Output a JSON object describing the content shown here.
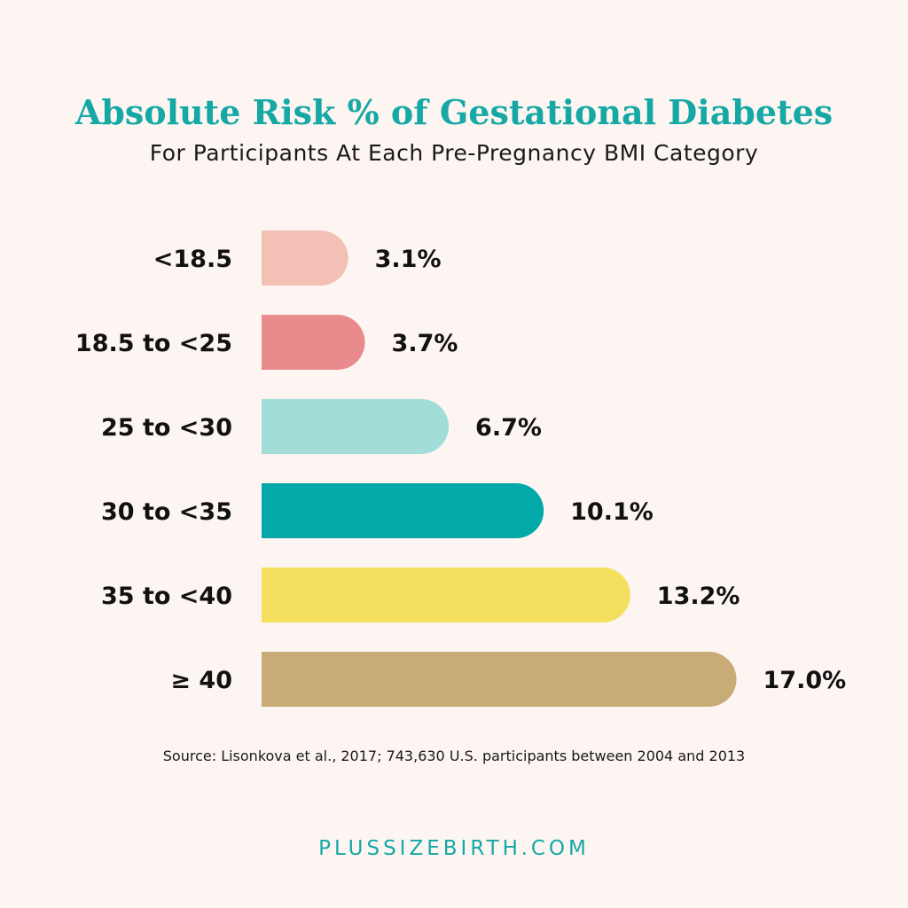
{
  "header": {
    "title": "Absolute Risk % of Gestational Diabetes",
    "subtitle": "For Participants At Each Pre-Pregnancy BMI Category"
  },
  "chart_data": {
    "type": "bar",
    "orientation": "horizontal",
    "categories": [
      "<18.5",
      "18.5 to <25",
      "25 to <30",
      "30 to <35",
      "35 to <40",
      "≥ 40"
    ],
    "values": [
      3.1,
      3.7,
      6.7,
      10.1,
      13.2,
      17.0
    ],
    "data_labels": [
      "3.1%",
      "3.7%",
      "6.7%",
      "10.1%",
      "13.2%",
      "17.0%"
    ],
    "colors": [
      "#f2c0b5",
      "#e98a8c",
      "#a2ddd8",
      "#03a8a8",
      "#f4e05e",
      "#c8ab76"
    ],
    "grid": false,
    "legend": "none"
  },
  "footer": {
    "source": "Source: Lisonkova et al., 2017; 743,630 U.S. participants between 2004 and 2013",
    "brand": "PLUSSIZEBIRTH.COM"
  }
}
